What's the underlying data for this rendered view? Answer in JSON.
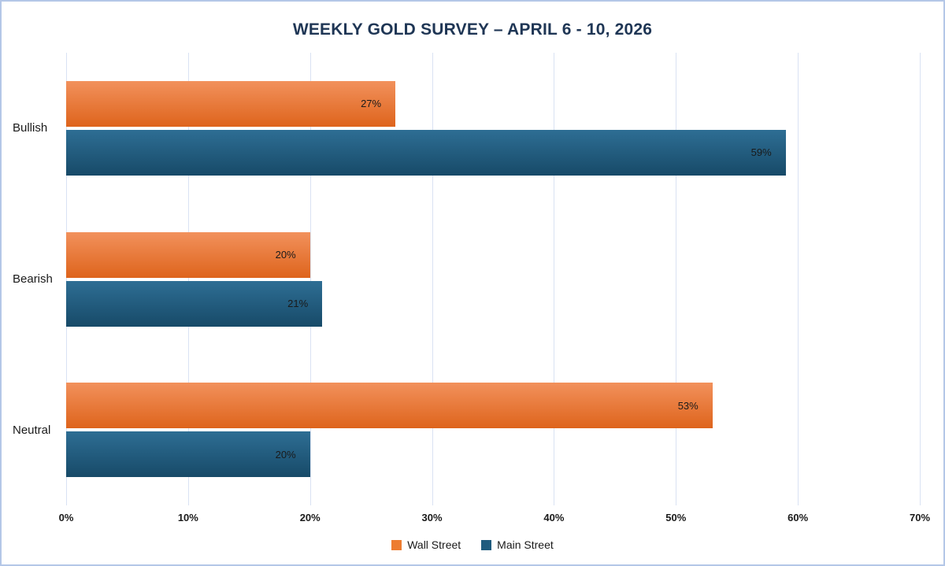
{
  "chart_data": {
    "type": "bar",
    "orientation": "horizontal",
    "title": "WEEKLY GOLD SURVEY – APRIL 6 - 10, 2026",
    "categories": [
      "Bullish",
      "Bearish",
      "Neutral"
    ],
    "series": [
      {
        "name": "Wall Street",
        "values": [
          27,
          20,
          53
        ],
        "color": "#ED7D31",
        "gradient_top": "#F2915C",
        "gradient_bottom": "#DE641C"
      },
      {
        "name": "Main Street",
        "values": [
          59,
          21,
          20
        ],
        "color": "#1F5B7E",
        "gradient_top": "#2E6E94",
        "gradient_bottom": "#174A68"
      }
    ],
    "xlim": [
      0,
      70
    ],
    "xtick_step": 10,
    "xtick_suffix": "%",
    "value_label_suffix": "%",
    "grid": "vertical",
    "legend_position": "bottom"
  }
}
